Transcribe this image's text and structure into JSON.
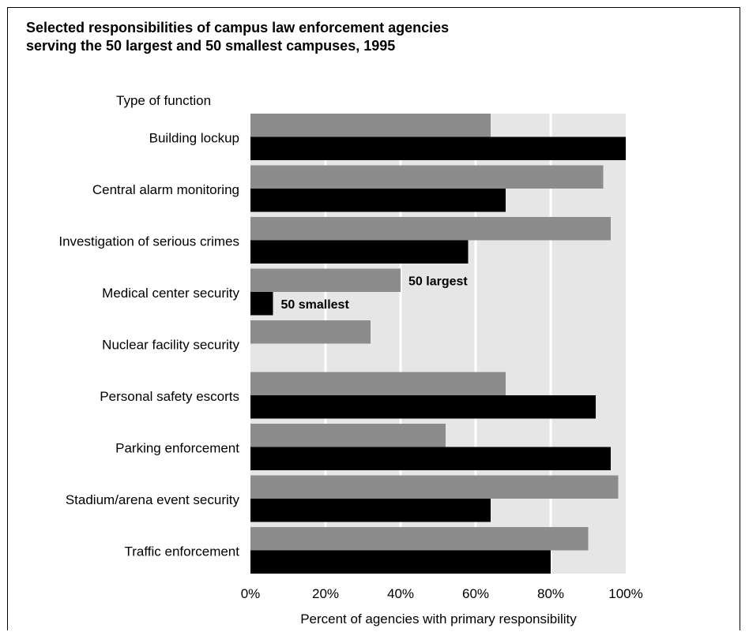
{
  "chart_data": {
    "type": "bar",
    "orientation": "horizontal",
    "title_lines": [
      "Selected responsibilities of campus law enforcement agencies",
      "serving the 50 largest and 50 smallest campuses, 1995"
    ],
    "category_axis_title": "Type of function",
    "xlabel": "Percent of agencies with primary responsibility",
    "xlim": [
      0,
      100
    ],
    "x_tick_labels": [
      "0%",
      "20%",
      "40%",
      "60%",
      "80%",
      "100%"
    ],
    "categories": [
      "Building lockup",
      "Central alarm monitoring",
      "Investigation of serious crimes",
      "Medical center security",
      "Nuclear facility security",
      "Personal safety escorts",
      "Parking enforcement",
      "Stadium/arena event security",
      "Traffic enforcement"
    ],
    "series": [
      {
        "name": "50 largest",
        "color": "#8c8c8c",
        "values": [
          64,
          94,
          96,
          40,
          32,
          68,
          52,
          98,
          90
        ]
      },
      {
        "name": "50 smallest",
        "color": "#000000",
        "values": [
          100,
          68,
          58,
          6,
          0,
          92,
          96,
          64,
          80
        ]
      }
    ],
    "series_label_category": "Medical center security",
    "grid": true,
    "plot_background_color": "#e6e6e6",
    "grid_color": "#ffffff"
  }
}
